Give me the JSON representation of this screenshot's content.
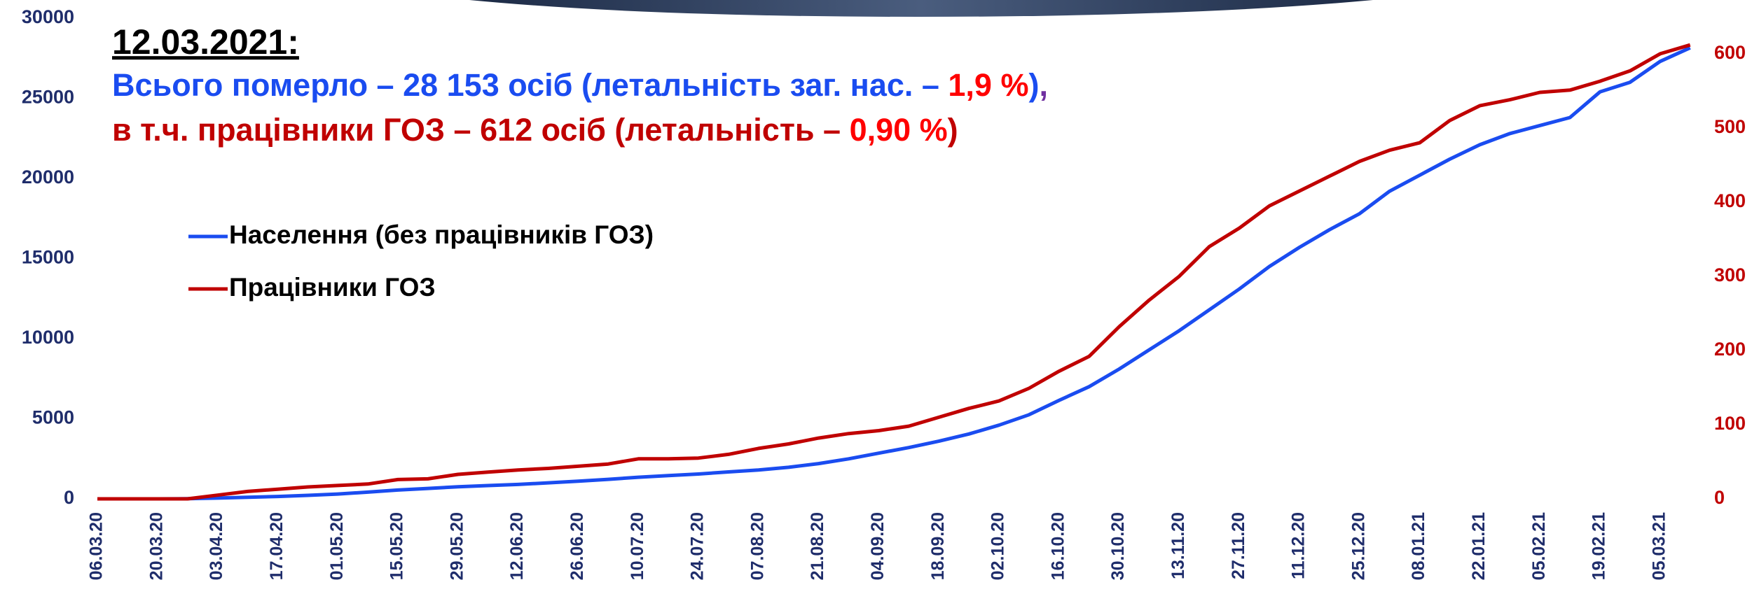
{
  "chart_data": {
    "type": "line",
    "title": "12.03.2021:",
    "subtitle_lines": [
      [
        {
          "text": "Всього померло – 28 153 осіб (летальність заг. нас. – ",
          "color": "#1a4cf0"
        },
        {
          "text": "1,9 %",
          "color": "#ff0000"
        },
        {
          "text": ")",
          "color": "#1a4cf0"
        },
        {
          "text": ",",
          "color": "#7030a0"
        }
      ],
      [
        {
          "text": "в т.ч. працівники ГОЗ – 612 осіб (летальність – ",
          "color": "#c00000"
        },
        {
          "text": "0,90 %",
          "color": "#ff0000"
        },
        {
          "text": ")",
          "color": "#c00000"
        }
      ]
    ],
    "categories": [
      "06.03.20",
      null,
      "20.03.20",
      null,
      "03.04.20",
      null,
      "17.04.20",
      null,
      "01.05.20",
      null,
      "15.05.20",
      null,
      "29.05.20",
      null,
      "12.06.20",
      null,
      "26.06.20",
      null,
      "10.07.20",
      null,
      "24.07.20",
      null,
      "07.08.20",
      null,
      "21.08.20",
      null,
      "04.09.20",
      null,
      "18.09.20",
      null,
      "02.10.20",
      null,
      "16.10.20",
      null,
      "30.10.20",
      null,
      "13.11.20",
      null,
      "27.11.20",
      null,
      "11.12.20",
      null,
      "25.12.20",
      null,
      "08.01.21",
      null,
      "22.01.21",
      null,
      "05.02.21",
      null,
      "19.02.21",
      null,
      "05.03.21",
      null
    ],
    "series": [
      {
        "name": "Населення (без працівників ГОЗ)",
        "color": "#1a4cf0",
        "axis": "y",
        "values": [
          0,
          0,
          0,
          10,
          50,
          100,
          150,
          220,
          300,
          420,
          550,
          650,
          750,
          830,
          900,
          1000,
          1100,
          1220,
          1350,
          1450,
          1550,
          1680,
          1800,
          1970,
          2200,
          2500,
          2850,
          3200,
          3600,
          4050,
          4600,
          5250,
          6150,
          7000,
          8100,
          9300,
          10500,
          11800,
          13100,
          14500,
          15700,
          16800,
          17800,
          19200,
          20200,
          21200,
          22100,
          22800,
          23300,
          23800,
          25400,
          26000,
          27300,
          28153
        ]
      },
      {
        "name": "Працівники ГОЗ",
        "color": "#c00000",
        "axis": "y2",
        "values": [
          0,
          0,
          0,
          0,
          5,
          10,
          13,
          16,
          18,
          20,
          26,
          27,
          33,
          36,
          39,
          41,
          44,
          47,
          54,
          54,
          55,
          60,
          68,
          74,
          82,
          88,
          92,
          98,
          110,
          122,
          132,
          149,
          172,
          192,
          232,
          268,
          300,
          340,
          365,
          395,
          415,
          435,
          455,
          470,
          480,
          510,
          530,
          538,
          548,
          551,
          563,
          577,
          600,
          612
        ]
      }
    ],
    "ylim": [
      0,
      30000
    ],
    "yticks": [
      0,
      5000,
      10000,
      15000,
      20000,
      25000,
      30000
    ],
    "y2lim": [
      0,
      648
    ],
    "y2ticks": [
      0,
      100,
      200,
      300,
      400,
      500,
      600
    ],
    "ytick_color": "#1f2d6b",
    "y2tick_color": "#c00000",
    "legend": "upper left",
    "grid": false
  }
}
